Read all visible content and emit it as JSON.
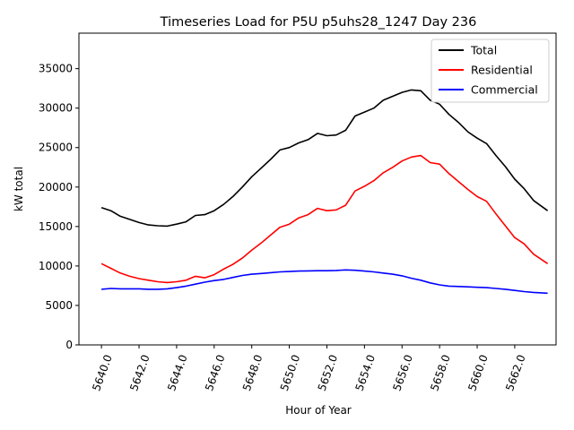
{
  "chart_data": {
    "type": "line",
    "title": "Timeseries Load for P5U p5uhs28_1247  Day 236",
    "xlabel": "Hour of Year",
    "ylabel": "kW total",
    "xlim": [
      5638.8,
      5664.2
    ],
    "ylim": [
      0,
      39500
    ],
    "grid": false,
    "legend_position": "top-right",
    "xticks": [
      5640,
      5642,
      5644,
      5646,
      5648,
      5650,
      5652,
      5654,
      5656,
      5658,
      5660,
      5662
    ],
    "xtick_labels": [
      "5640.0",
      "5642.0",
      "5644.0",
      "5646.0",
      "5648.0",
      "5650.0",
      "5652.0",
      "5654.0",
      "5656.0",
      "5658.0",
      "5660.0",
      "5662.0"
    ],
    "yticks": [
      0,
      5000,
      10000,
      15000,
      20000,
      25000,
      30000,
      35000
    ],
    "ytick_labels": [
      "0",
      "5000",
      "10000",
      "15000",
      "20000",
      "25000",
      "30000",
      "35000"
    ],
    "x": [
      5640.0,
      5640.5,
      5641.0,
      5641.5,
      5642.0,
      5642.5,
      5643.0,
      5643.5,
      5644.0,
      5644.5,
      5645.0,
      5645.5,
      5646.0,
      5646.5,
      5647.0,
      5647.5,
      5648.0,
      5648.5,
      5649.0,
      5649.5,
      5650.0,
      5650.5,
      5651.0,
      5651.5,
      5652.0,
      5652.5,
      5653.0,
      5653.5,
      5654.0,
      5654.5,
      5655.0,
      5655.5,
      5656.0,
      5656.5,
      5657.0,
      5657.5,
      5658.0,
      5658.5,
      5659.0,
      5659.5,
      5660.0,
      5660.5,
      5661.0,
      5661.5,
      5662.0,
      5662.5,
      5663.0,
      5663.75
    ],
    "series": [
      {
        "name": "Total",
        "color": "#000000",
        "values": [
          17400,
          17000,
          16300,
          15900,
          15500,
          15200,
          15100,
          15050,
          15300,
          15600,
          16400,
          16500,
          17000,
          17800,
          18800,
          20000,
          21300,
          22400,
          23500,
          24700,
          25000,
          25600,
          26000,
          26800,
          26500,
          26600,
          27200,
          29000,
          29500,
          30000,
          31000,
          31500,
          32000,
          32300,
          32200,
          31000,
          30500,
          29200,
          28200,
          27000,
          26200,
          25500,
          24000,
          22600,
          21000,
          19800,
          18300,
          17000
        ]
      },
      {
        "name": "Residential",
        "color": "#ff0000",
        "values": [
          10300,
          9700,
          9100,
          8700,
          8400,
          8200,
          8000,
          7900,
          8000,
          8200,
          8700,
          8500,
          8900,
          9600,
          10200,
          11000,
          12000,
          12900,
          13900,
          14900,
          15300,
          16100,
          16500,
          17300,
          17000,
          17100,
          17700,
          19500,
          20100,
          20800,
          21800,
          22500,
          23300,
          23800,
          24000,
          23100,
          22900,
          21700,
          20700,
          19700,
          18800,
          18200,
          16600,
          15100,
          13600,
          12800,
          11500,
          10300
        ]
      },
      {
        "name": "Commercial",
        "color": "#0000ff",
        "values": [
          7050,
          7150,
          7100,
          7100,
          7100,
          7050,
          7050,
          7100,
          7250,
          7450,
          7700,
          7950,
          8150,
          8300,
          8550,
          8800,
          8950,
          9050,
          9150,
          9250,
          9300,
          9350,
          9380,
          9400,
          9400,
          9430,
          9500,
          9450,
          9350,
          9250,
          9100,
          8950,
          8750,
          8450,
          8200,
          7850,
          7600,
          7450,
          7400,
          7350,
          7300,
          7250,
          7150,
          7050,
          6900,
          6750,
          6650,
          6550
        ]
      }
    ]
  }
}
